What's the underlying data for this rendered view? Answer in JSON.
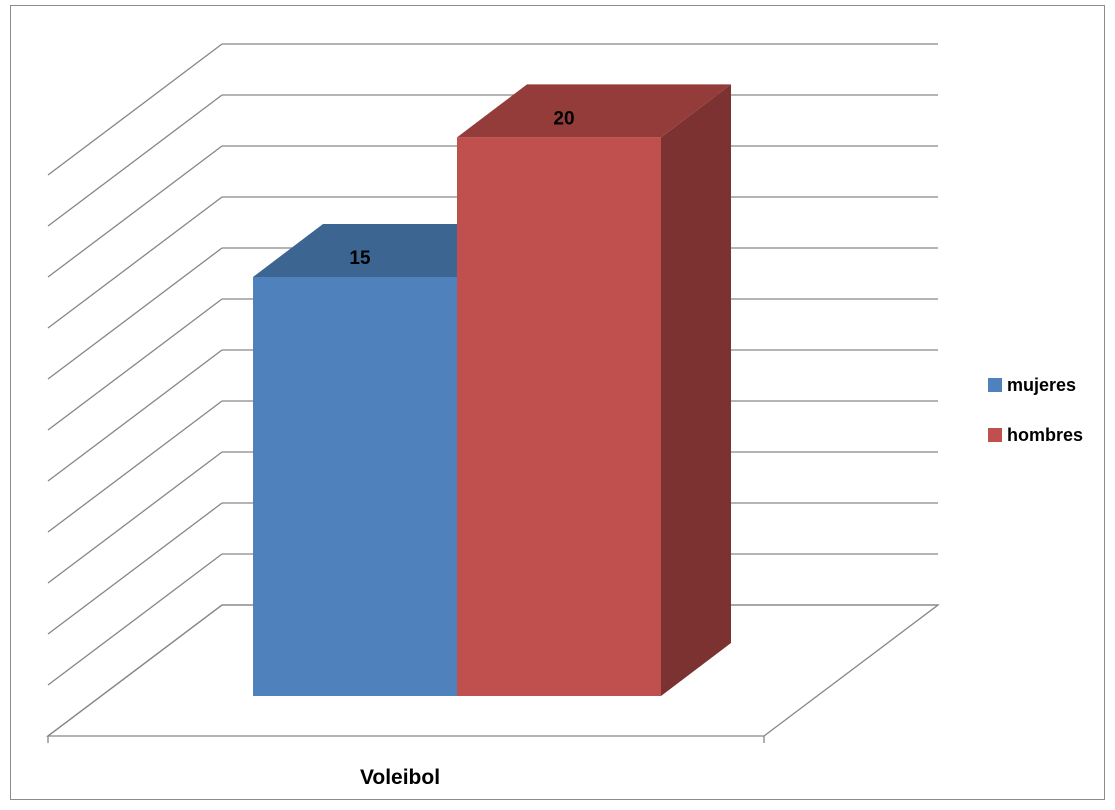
{
  "chart_data": {
    "type": "bar",
    "style": "3d-clustered-column",
    "categories": [
      "Voleibol"
    ],
    "series": [
      {
        "name": "mujeres",
        "values": [
          15
        ],
        "color": "#4F81BD",
        "top_color": "#3D6591",
        "side_color": "#34557A"
      },
      {
        "name": "hombres",
        "values": [
          20
        ],
        "color": "#C0504D",
        "top_color": "#943C3A",
        "side_color": "#7B3230"
      }
    ],
    "data_labels": [
      "15",
      "20"
    ],
    "ylim": [
      0,
      22
    ],
    "grid": true,
    "legend_position": "right",
    "axis_labels_visible": false
  }
}
